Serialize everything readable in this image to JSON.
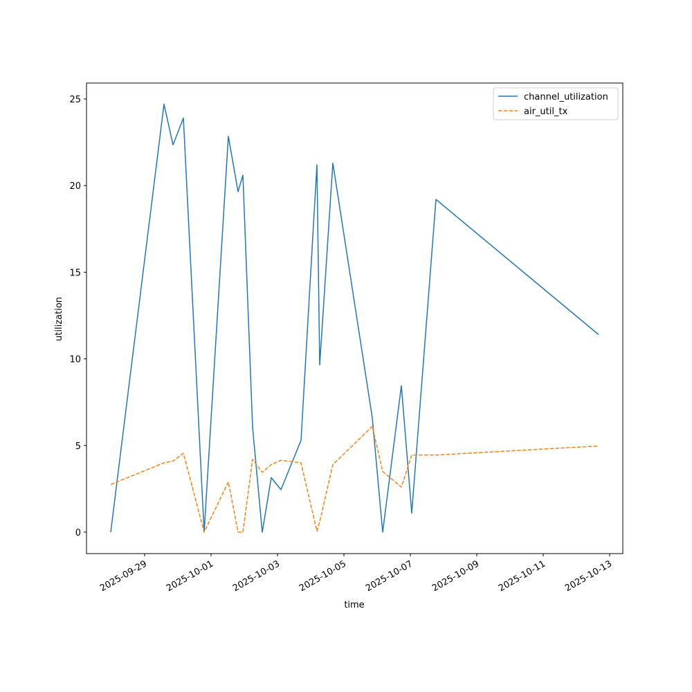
{
  "chart_data": {
    "type": "line",
    "title": "",
    "xlabel": "time",
    "ylabel": "utilization",
    "xlim": [
      "2025-09-27T06:00",
      "2025-10-13T09:30"
    ],
    "ylim": [
      -1.24,
      25.92
    ],
    "x_ticks": [
      "2025-09-29",
      "2025-10-01",
      "2025-10-03",
      "2025-10-05",
      "2025-10-07",
      "2025-10-09",
      "2025-10-11",
      "2025-10-13"
    ],
    "y_ticks": [
      0,
      5,
      10,
      15,
      20,
      25
    ],
    "grid": false,
    "legend_position": "top-right",
    "x": [
      "2025-09-27T23:30",
      "2025-09-29T14:00",
      "2025-09-29T20:30",
      "2025-09-30T04:00",
      "2025-09-30T19:00",
      "2025-10-01T12:30",
      "2025-10-01T19:30",
      "2025-10-01T23:00",
      "2025-10-02T06:00",
      "2025-10-02T13:00",
      "2025-10-02T19:30",
      "2025-10-03T02:30",
      "2025-10-03T17:00",
      "2025-10-04T04:30",
      "2025-10-04T06:30",
      "2025-10-04T16:00",
      "2025-10-05T20:30",
      "2025-10-06T04:00",
      "2025-10-06T17:30",
      "2025-10-07T01:00",
      "2025-10-07T18:30",
      "2025-10-12T16:00"
    ],
    "series": [
      {
        "name": "channel_utilization",
        "color": "#1f77b4",
        "style": "solid",
        "values": [
          0,
          24.7,
          22.35,
          23.9,
          0,
          22.85,
          19.65,
          20.6,
          6.05,
          0,
          3.15,
          2.45,
          5.3,
          21.2,
          9.65,
          21.3,
          6.6,
          0,
          8.45,
          1.1,
          19.2,
          11.4
        ]
      },
      {
        "name": "air_util_tx",
        "color": "#ff7f0e",
        "style": "dashed",
        "values": [
          2.75,
          4.0,
          4.1,
          4.55,
          0,
          2.9,
          0,
          0,
          4.2,
          3.45,
          3.9,
          4.15,
          4.0,
          0.05,
          0.6,
          3.9,
          6.1,
          3.5,
          2.6,
          4.45,
          4.45,
          4.97
        ]
      }
    ]
  }
}
